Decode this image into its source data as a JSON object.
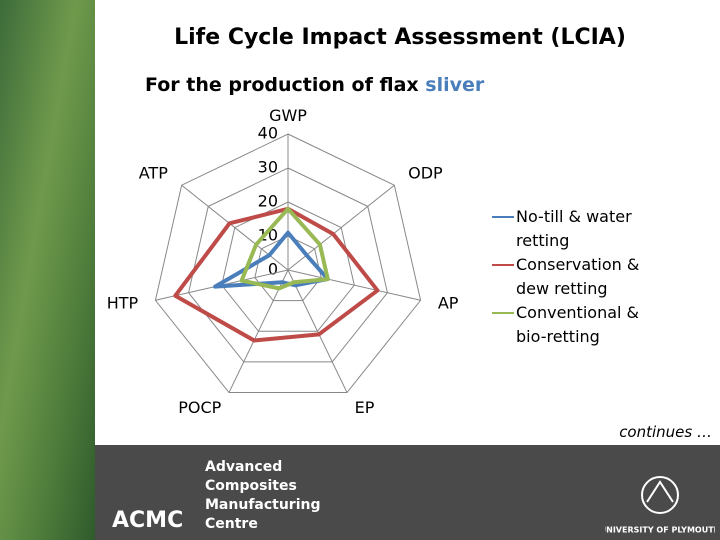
{
  "chart_data": {
    "type": "radar",
    "title": "Life Cycle Impact Assessment (LCIA)",
    "subtitle": "For the production of flax",
    "subtitle_highlight": "sliver",
    "categories": [
      "GWP",
      "ODP",
      "AP",
      "EP",
      "POCP",
      "HTP",
      "ATP"
    ],
    "ylim": [
      0,
      40
    ],
    "yticks": [
      0,
      10,
      20,
      30,
      40
    ],
    "series": [
      {
        "name": "No-till & water retting",
        "color": "#4a7ebb",
        "values": [
          11,
          7,
          12,
          5,
          4,
          22,
          7
        ]
      },
      {
        "name": "Conservation & dew retting",
        "color": "#be4b48",
        "values": [
          18,
          17,
          27,
          21,
          23,
          34,
          22
        ]
      },
      {
        "name": "Conventional & bio-retting",
        "color": "#98b954",
        "values": [
          18,
          12,
          12,
          4,
          6,
          14,
          12
        ]
      }
    ]
  },
  "note": "continues …",
  "logo": {
    "acronym": "ACMC",
    "lines": [
      "Advanced",
      "Composites",
      "Manufacturing",
      "Centre"
    ],
    "university": "UNIVERSITY OF PLYMOUTH"
  }
}
